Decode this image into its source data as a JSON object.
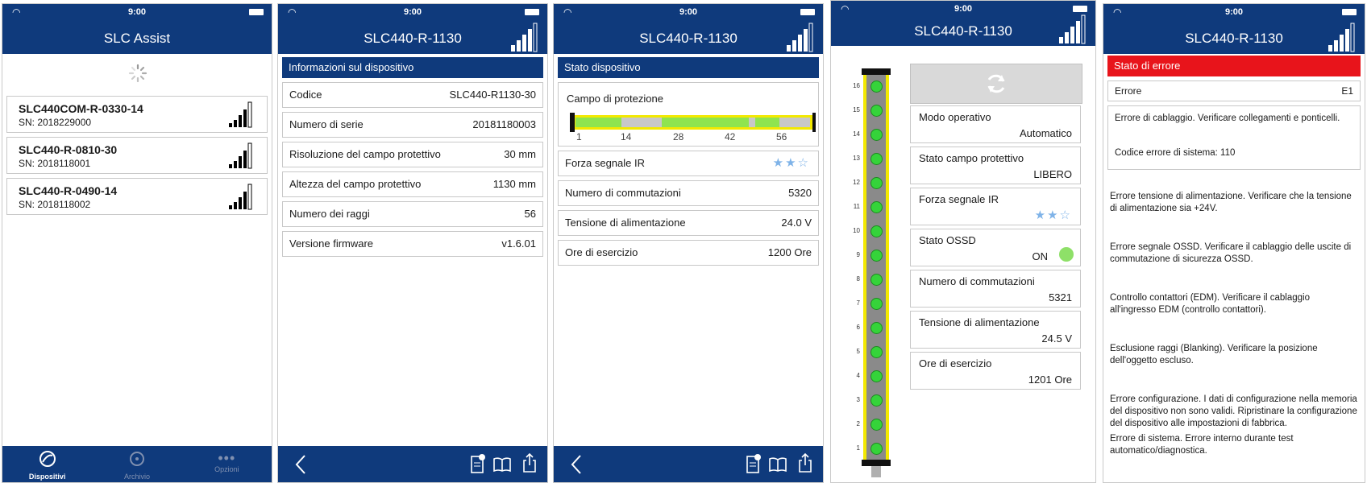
{
  "status_time": "9:00",
  "phone1": {
    "title": "SLC Assist",
    "devices": [
      {
        "name": "SLC440COM-R-0330-14",
        "sn": "SN: 2018229000"
      },
      {
        "name": "SLC440-R-0810-30",
        "sn": "SN: 2018118001"
      },
      {
        "name": "SLC440-R-0490-14",
        "sn": "SN: 2018118002"
      }
    ],
    "tabs": [
      {
        "label": "Dispositivi"
      },
      {
        "label": "Archivio"
      },
      {
        "label": "Opzioni"
      }
    ]
  },
  "phone2": {
    "title": "SLC440-R-1130",
    "section": "Informazioni sul dispositivo",
    "rows": [
      {
        "label": "Codice",
        "value": "SLC440-R1130-30"
      },
      {
        "label": "Numero di serie",
        "value": "20181180003"
      },
      {
        "label": "Risoluzione del campo protettivo",
        "value": "30 mm"
      },
      {
        "label": "Altezza del campo protettivo",
        "value": "1130 mm"
      },
      {
        "label": "Numero dei raggi",
        "value": "56"
      },
      {
        "label": "Versione firmware",
        "value": "v1.6.01"
      }
    ]
  },
  "phone3": {
    "title": "SLC440-R-1130",
    "section": "Stato dispositivo",
    "field_label": "Campo di protezione",
    "ticks": [
      "1",
      "14",
      "28",
      "42",
      "56"
    ],
    "ir_label": "Forza segnale IR",
    "rows": [
      {
        "label": "Numero di commutazioni",
        "value": "5320"
      },
      {
        "label": "Tensione di alimentazione",
        "value": "24.0 V"
      },
      {
        "label": "Ore di esercizio",
        "value": "1200 Ore"
      }
    ]
  },
  "phone4": {
    "title": "SLC440-R-1130",
    "beam_labels": [
      "16",
      "15",
      "14",
      "13",
      "12",
      "11",
      "10",
      "9",
      "8",
      "7",
      "6",
      "5",
      "4",
      "3",
      "2",
      "1"
    ],
    "cards": [
      {
        "label": "Modo operativo",
        "value": "Automatico"
      },
      {
        "label": "Stato campo protettivo",
        "value": "LIBERO"
      }
    ],
    "ir_label": "Forza segnale IR",
    "ossd": {
      "label": "Stato OSSD",
      "value": "ON"
    },
    "cards2": [
      {
        "label": "Numero di commutazioni",
        "value": "5321"
      },
      {
        "label": "Tensione di alimentazione",
        "value": "24.5 V"
      },
      {
        "label": "Ore di esercizio",
        "value": "1201 Ore"
      }
    ]
  },
  "phone5": {
    "title": "SLC440-R-1130",
    "section": "Stato di errore",
    "error_label": "Errore",
    "error_code": "E1",
    "box_line1": "Errore di cablaggio. Verificare collegamenti e ponticelli.",
    "box_line2": "Codice errore di sistema: 110",
    "messages": [
      "Errore tensione di alimentazione. Verificare che la tensione di alimentazione sia +24V.",
      "Errore segnale OSSD. Verificare il cablaggio delle uscite di commutazione di sicurezza OSSD.",
      "Controllo contattori (EDM). Verificare il cablaggio all'ingresso EDM (controllo contattori).",
      "Esclusione raggi (Blanking). Verificare la posizione dell'oggetto escluso.",
      "Errore configurazione. I dati di configurazione nella memoria del dispositivo non sono validi. Ripristinare la configurazione del dispositivo alle impostazioni di fabbrica.",
      "Errore di sistema. Errore interno durante test automatico/diagnostica."
    ]
  }
}
